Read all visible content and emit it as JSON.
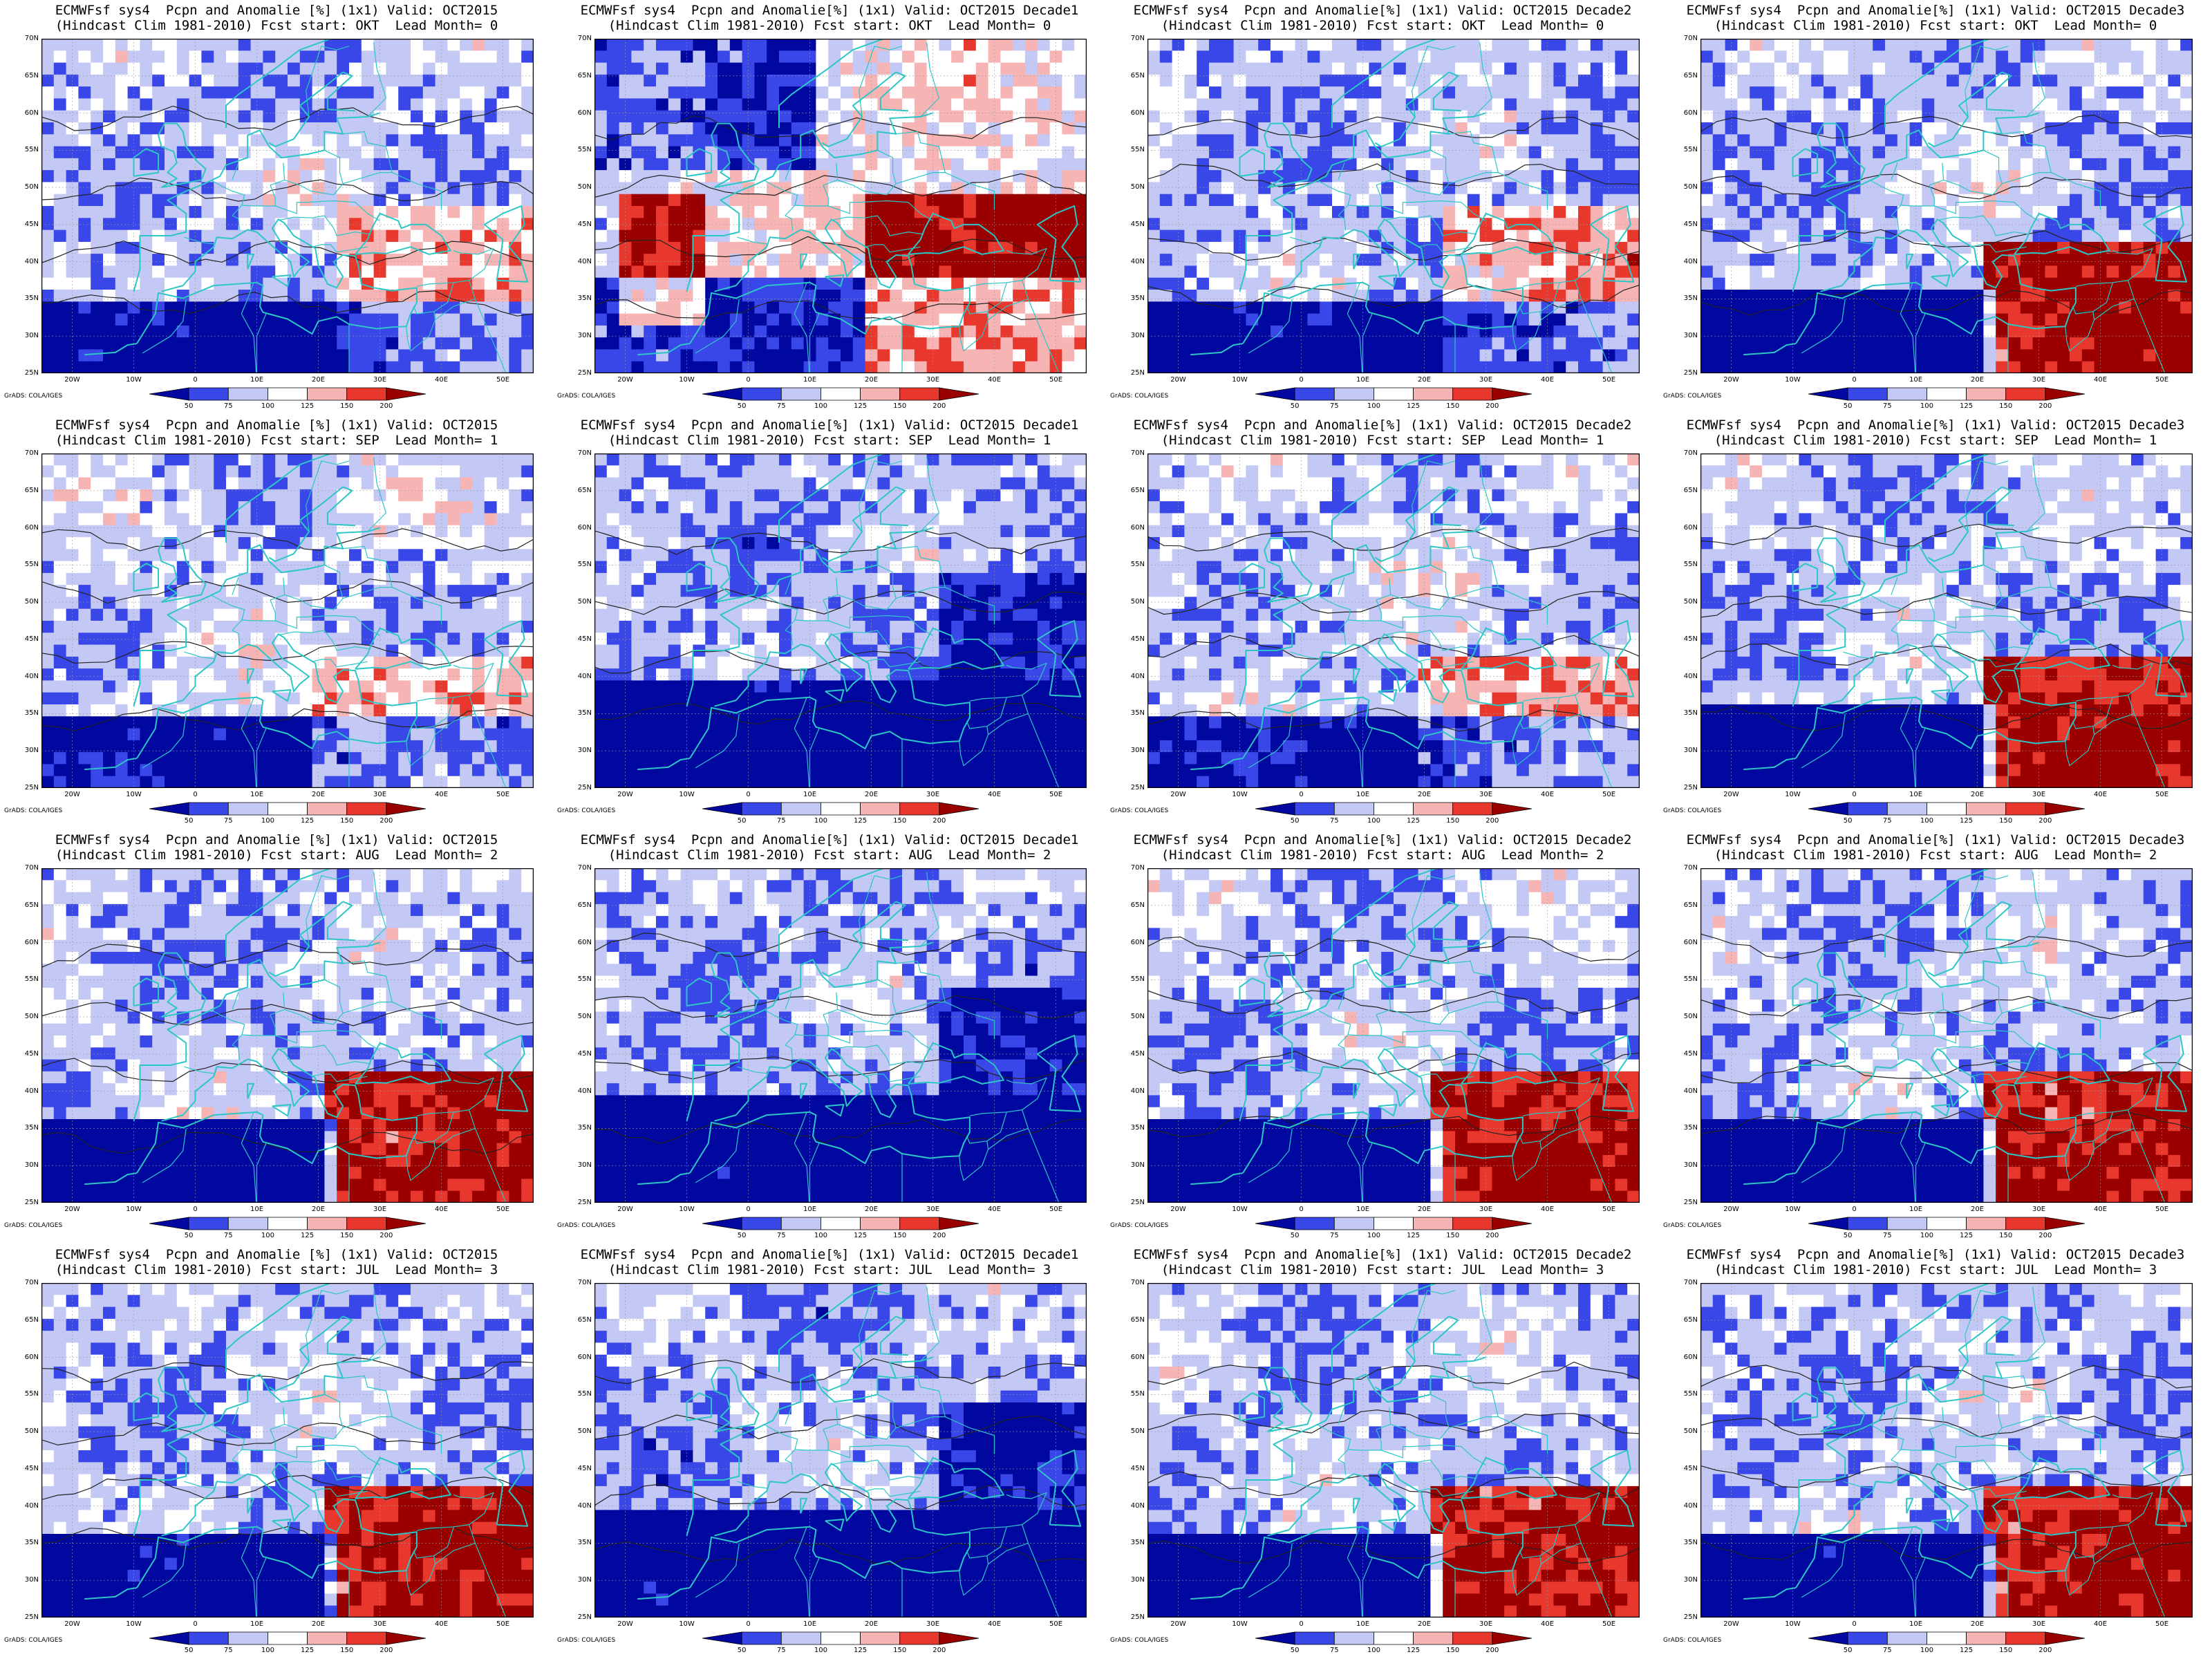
{
  "credit": "GrADS: COLA/IGES",
  "lat_labels": [
    "70N",
    "65N",
    "60N",
    "55N",
    "50N",
    "45N",
    "40N",
    "35N",
    "30N",
    "25N"
  ],
  "lon_labels": [
    "20W",
    "10W",
    "0",
    "10E",
    "20E",
    "30E",
    "40E",
    "50E"
  ],
  "colorbar_labels": [
    "50",
    "75",
    "100",
    "125",
    "150",
    "200"
  ],
  "colors": {
    "deep_blue": "#0008a0",
    "blue": "#3a47e8",
    "light_blue": "#c4c8f4",
    "white": "#ffffff",
    "light_red": "#f6b4b4",
    "red": "#e8382e",
    "deep_red": "#9a0000",
    "coast": "#2cc6c6",
    "contour": "#222222"
  },
  "panels": [
    {
      "line1": "ECMWFsf sys4  Pcpn and Anomalie [%] (1x1) Valid: OCT2015",
      "line2": "(Hindcast Clim 1981-2010) Fcst start: OKT  Lead Month= 0",
      "anomaly": "mixed"
    },
    {
      "line1": "ECMWFsf sys4  Pcpn and Anomalie[%] (1x1) Valid: OCT2015 Decade1",
      "line2": "(Hindcast Clim 1981-2010) Fcst start: OKT  Lead Month= 0",
      "anomaly": "strong"
    },
    {
      "line1": "ECMWFsf sys4  Pcpn and Anomalie[%] (1x1) Valid: OCT2015 Decade2",
      "line2": "(Hindcast Clim 1981-2010) Fcst start: OKT  Lead Month= 0",
      "anomaly": "mixed"
    },
    {
      "line1": "ECMWFsf sys4  Pcpn and Anomalie[%] (1x1) Valid: OCT2015 Decade3",
      "line2": "(Hindcast Clim 1981-2010) Fcst start: OKT  Lead Month= 0",
      "anomaly": "wet_east"
    },
    {
      "line1": "ECMWFsf sys4  Pcpn and Anomalie [%] (1x1) Valid: OCT2015",
      "line2": "(Hindcast Clim 1981-2010) Fcst start: SEP  Lead Month= 1",
      "anomaly": "mild"
    },
    {
      "line1": "ECMWFsf sys4  Pcpn and Anomalie[%] (1x1) Valid: OCT2015 Decade1",
      "line2": "(Hindcast Clim 1981-2010) Fcst start: SEP  Lead Month= 1",
      "anomaly": "dry"
    },
    {
      "line1": "ECMWFsf sys4  Pcpn and Anomalie[%] (1x1) Valid: OCT2015 Decade2",
      "line2": "(Hindcast Clim 1981-2010) Fcst start: SEP  Lead Month= 1",
      "anomaly": "mild"
    },
    {
      "line1": "ECMWFsf sys4  Pcpn and Anomalie[%] (1x1) Valid: OCT2015 Decade3",
      "line2": "(Hindcast Clim 1981-2010) Fcst start: SEP  Lead Month= 1",
      "anomaly": "wet_east"
    },
    {
      "line1": "ECMWFsf sys4  Pcpn and Anomalie [%] (1x1) Valid: OCT2015",
      "line2": "(Hindcast Clim 1981-2010) Fcst start: AUG  Lead Month= 2",
      "anomaly": "wet_east"
    },
    {
      "line1": "ECMWFsf sys4  Pcpn and Anomalie[%] (1x1) Valid: OCT2015 Decade1",
      "line2": "(Hindcast Clim 1981-2010) Fcst start: AUG  Lead Month= 2",
      "anomaly": "dry"
    },
    {
      "line1": "ECMWFsf sys4  Pcpn and Anomalie[%] (1x1) Valid: OCT2015 Decade2",
      "line2": "(Hindcast Clim 1981-2010) Fcst start: AUG  Lead Month= 2",
      "anomaly": "wet_east"
    },
    {
      "line1": "ECMWFsf sys4  Pcpn and Anomalie[%] (1x1) Valid: OCT2015 Decade3",
      "line2": "(Hindcast Clim 1981-2010) Fcst start: AUG  Lead Month= 2",
      "anomaly": "wet_east"
    },
    {
      "line1": "ECMWFsf sys4  Pcpn and Anomalie [%] (1x1) Valid: OCT2015",
      "line2": "(Hindcast Clim 1981-2010) Fcst start: JUL  Lead Month= 3",
      "anomaly": "wet_east"
    },
    {
      "line1": "ECMWFsf sys4  Pcpn and Anomalie[%] (1x1) Valid: OCT2015 Decade1",
      "line2": "(Hindcast Clim 1981-2010) Fcst start: JUL  Lead Month= 3",
      "anomaly": "dry"
    },
    {
      "line1": "ECMWFsf sys4  Pcpn and Anomalie[%] (1x1) Valid: OCT2015 Decade2",
      "line2": "(Hindcast Clim 1981-2010) Fcst start: JUL  Lead Month= 3",
      "anomaly": "wet_east"
    },
    {
      "line1": "ECMWFsf sys4  Pcpn and Anomalie[%] (1x1) Valid: OCT2015 Decade3",
      "line2": "(Hindcast Clim 1981-2010) Fcst start: JUL  Lead Month= 3",
      "anomaly": "wet_east"
    }
  ]
}
